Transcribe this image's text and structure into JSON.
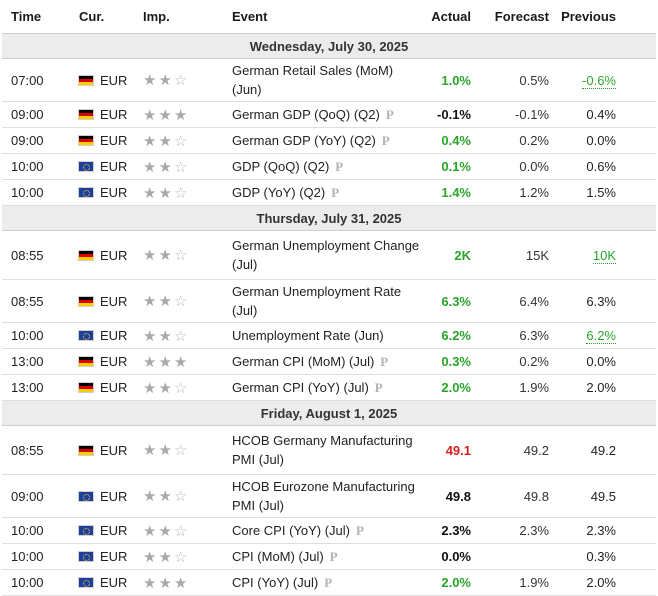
{
  "columns": {
    "time": "Time",
    "currency": "Cur.",
    "importance": "Imp.",
    "event": "Event",
    "actual": "Actual",
    "forecast": "Forecast",
    "previous": "Previous"
  },
  "colors": {
    "positive": "#2aa52a",
    "negative": "#d62020",
    "neutral": "#111111",
    "day_header_bg": "#ececec"
  },
  "days": [
    {
      "label": "Wednesday, July 30, 2025",
      "events": [
        {
          "time": "07:00",
          "flag": "de",
          "cur": "EUR",
          "stars": 2,
          "lines": [
            "German Retail Sales (MoM)",
            "(Jun)"
          ],
          "prelim": false,
          "actual": "1.0%",
          "actual_color": "green",
          "forecast": "0.5%",
          "previous": "-0.6%",
          "previous_revised": true,
          "h": "h2"
        },
        {
          "time": "09:00",
          "flag": "de",
          "cur": "EUR",
          "stars": 3,
          "lines": [
            "German GDP (QoQ) (Q2)"
          ],
          "prelim": true,
          "actual": "-0.1%",
          "actual_color": "black",
          "forecast": "-0.1%",
          "previous": "0.4%",
          "previous_revised": false,
          "h": "h1"
        },
        {
          "time": "09:00",
          "flag": "de",
          "cur": "EUR",
          "stars": 2,
          "lines": [
            "German GDP (YoY) (Q2)"
          ],
          "prelim": true,
          "actual": "0.4%",
          "actual_color": "green",
          "forecast": "0.2%",
          "previous": "0.0%",
          "previous_revised": false,
          "h": "h1"
        },
        {
          "time": "10:00",
          "flag": "eu",
          "cur": "EUR",
          "stars": 2,
          "lines": [
            "GDP (QoQ) (Q2)"
          ],
          "prelim": true,
          "actual": "0.1%",
          "actual_color": "green",
          "forecast": "0.0%",
          "previous": "0.6%",
          "previous_revised": false,
          "h": "h1"
        },
        {
          "time": "10:00",
          "flag": "eu",
          "cur": "EUR",
          "stars": 2,
          "lines": [
            "GDP (YoY) (Q2)"
          ],
          "prelim": true,
          "actual": "1.4%",
          "actual_color": "green",
          "forecast": "1.2%",
          "previous": "1.5%",
          "previous_revised": false,
          "h": "h1"
        }
      ]
    },
    {
      "label": "Thursday, July 31, 2025",
      "events": [
        {
          "time": "08:55",
          "flag": "de",
          "cur": "EUR",
          "stars": 2,
          "lines": [
            "German Unemployment Change",
            "(Jul)"
          ],
          "prelim": false,
          "actual": "2K",
          "actual_color": "green",
          "forecast": "15K",
          "previous": "10K",
          "previous_revised": true,
          "h": "h3"
        },
        {
          "time": "08:55",
          "flag": "de",
          "cur": "EUR",
          "stars": 2,
          "lines": [
            "German Unemployment Rate",
            "(Jul)"
          ],
          "prelim": false,
          "actual": "6.3%",
          "actual_color": "green",
          "forecast": "6.4%",
          "previous": "6.3%",
          "previous_revised": false,
          "h": "h2"
        },
        {
          "time": "10:00",
          "flag": "eu",
          "cur": "EUR",
          "stars": 2,
          "lines": [
            "Unemployment Rate (Jun)"
          ],
          "prelim": false,
          "actual": "6.2%",
          "actual_color": "green",
          "forecast": "6.3%",
          "previous": "6.2%",
          "previous_revised": true,
          "h": "h1"
        },
        {
          "time": "13:00",
          "flag": "de",
          "cur": "EUR",
          "stars": 3,
          "lines": [
            "German CPI (MoM) (Jul)"
          ],
          "prelim": true,
          "actual": "0.3%",
          "actual_color": "green",
          "forecast": "0.2%",
          "previous": "0.0%",
          "previous_revised": false,
          "h": "h1"
        },
        {
          "time": "13:00",
          "flag": "de",
          "cur": "EUR",
          "stars": 2,
          "lines": [
            "German CPI (YoY) (Jul)"
          ],
          "prelim": true,
          "actual": "2.0%",
          "actual_color": "green",
          "forecast": "1.9%",
          "previous": "2.0%",
          "previous_revised": false,
          "h": "h1"
        }
      ]
    },
    {
      "label": "Friday, August 1, 2025",
      "events": [
        {
          "time": "08:55",
          "flag": "de",
          "cur": "EUR",
          "stars": 2,
          "lines": [
            "HCOB Germany Manufacturing",
            "PMI (Jul)"
          ],
          "prelim": false,
          "actual": "49.1",
          "actual_color": "red",
          "forecast": "49.2",
          "previous": "49.2",
          "previous_revised": false,
          "h": "h3"
        },
        {
          "time": "09:00",
          "flag": "eu",
          "cur": "EUR",
          "stars": 2,
          "lines": [
            "HCOB Eurozone Manufacturing",
            "PMI (Jul)"
          ],
          "prelim": false,
          "actual": "49.8",
          "actual_color": "black",
          "forecast": "49.8",
          "previous": "49.5",
          "previous_revised": false,
          "h": "h2"
        },
        {
          "time": "10:00",
          "flag": "eu",
          "cur": "EUR",
          "stars": 2,
          "lines": [
            "Core CPI (YoY) (Jul)"
          ],
          "prelim": true,
          "actual": "2.3%",
          "actual_color": "black",
          "forecast": "2.3%",
          "previous": "2.3%",
          "previous_revised": false,
          "h": "h1"
        },
        {
          "time": "10:00",
          "flag": "eu",
          "cur": "EUR",
          "stars": 2,
          "lines": [
            "CPI (MoM) (Jul)"
          ],
          "prelim": true,
          "actual": "0.0%",
          "actual_color": "black",
          "forecast": "",
          "previous": "0.3%",
          "previous_revised": false,
          "h": "h1"
        },
        {
          "time": "10:00",
          "flag": "eu",
          "cur": "EUR",
          "stars": 3,
          "lines": [
            "CPI (YoY) (Jul)"
          ],
          "prelim": true,
          "actual": "2.0%",
          "actual_color": "green",
          "forecast": "1.9%",
          "previous": "2.0%",
          "previous_revised": false,
          "h": "h1"
        }
      ]
    }
  ],
  "prelim_mark": "P",
  "star_glyph_on": "★",
  "star_glyph_off": "☆"
}
